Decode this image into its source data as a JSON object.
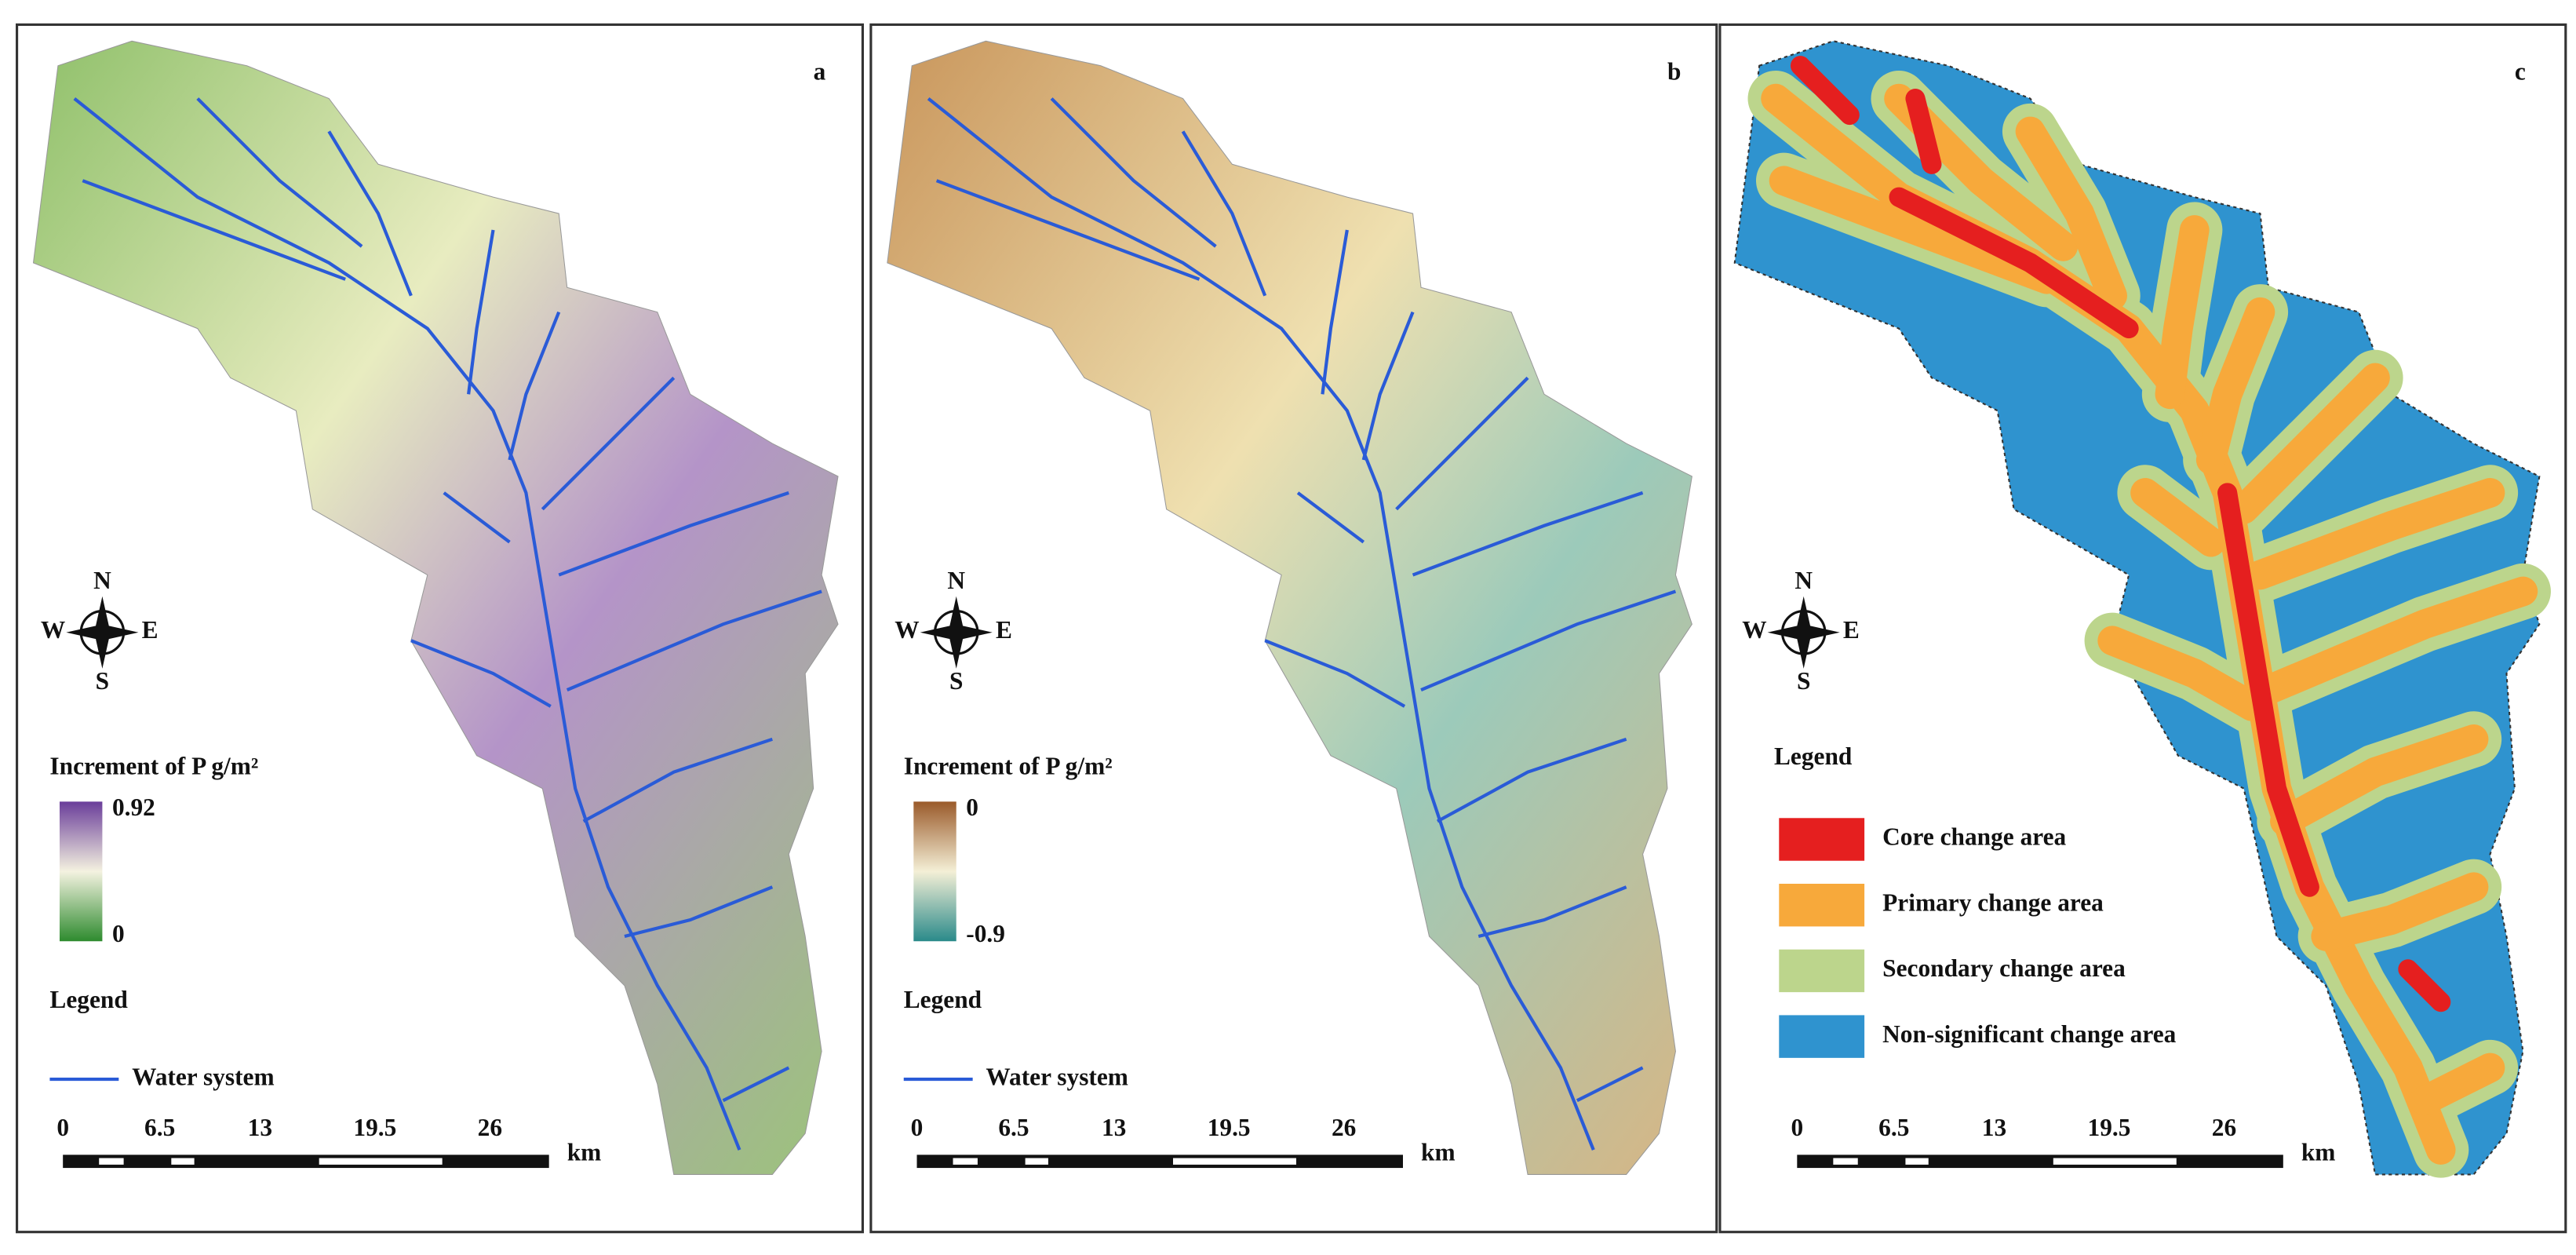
{
  "panels": [
    {
      "letter": "a",
      "legend_title": "Increment of P g/m²",
      "colorbar_max": "0.92",
      "colorbar_min": "0",
      "legend": "Legend",
      "line_legend": "Water system",
      "scale_labels": [
        "0",
        "6.5",
        "13",
        "19.5",
        "26"
      ],
      "scale_unit": "km",
      "compass": [
        "N",
        "S",
        "W",
        "E"
      ]
    },
    {
      "letter": "b",
      "legend_title": "Increment of P g/m²",
      "colorbar_max": "0",
      "colorbar_min": "-0.9",
      "legend": "Legend",
      "line_legend": "Water system",
      "scale_labels": [
        "0",
        "6.5",
        "13",
        "19.5",
        "26"
      ],
      "scale_unit": "km",
      "compass": [
        "N",
        "S",
        "W",
        "E"
      ]
    },
    {
      "letter": "c",
      "legend": "Legend",
      "legend_items": [
        "Core change area",
        "Primary change area",
        "Secondary change area",
        "Non-significant change area"
      ],
      "scale_labels": [
        "0",
        "6.5",
        "13",
        "19.5",
        "26"
      ],
      "scale_unit": "km",
      "compass": [
        "N",
        "S",
        "W",
        "E"
      ]
    }
  ]
}
